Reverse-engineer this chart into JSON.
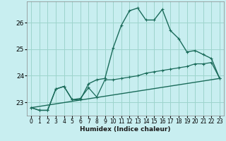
{
  "xlabel": "Humidex (Indice chaleur)",
  "bg_color": "#c8eef0",
  "grid_color": "#9dd4cc",
  "line_color": "#1a6b5a",
  "xlim": [
    -0.5,
    23.5
  ],
  "ylim": [
    22.5,
    26.8
  ],
  "yticks": [
    23,
    24,
    25,
    26
  ],
  "xticks": [
    0,
    1,
    2,
    3,
    4,
    5,
    6,
    7,
    8,
    9,
    10,
    11,
    12,
    13,
    14,
    15,
    16,
    17,
    18,
    19,
    20,
    21,
    22,
    23
  ],
  "series1_x": [
    0,
    1,
    2,
    3,
    4,
    5,
    6,
    7,
    8,
    9,
    10,
    11,
    12,
    13,
    14,
    15,
    16,
    17,
    18,
    19,
    20,
    21,
    22,
    23
  ],
  "series1_y": [
    22.8,
    22.7,
    22.7,
    23.5,
    23.6,
    23.1,
    23.1,
    23.7,
    23.85,
    23.9,
    25.05,
    25.9,
    26.45,
    26.55,
    26.1,
    26.1,
    26.5,
    25.7,
    25.4,
    24.9,
    24.95,
    24.8,
    24.65,
    23.9
  ],
  "series2_x": [
    0,
    1,
    2,
    3,
    4,
    5,
    6,
    7,
    8,
    9,
    10,
    11,
    12,
    13,
    14,
    15,
    16,
    17,
    18,
    19,
    20,
    21,
    22,
    23
  ],
  "series2_y": [
    22.8,
    22.7,
    22.7,
    23.5,
    23.6,
    23.1,
    23.15,
    23.55,
    23.2,
    23.85,
    23.85,
    23.9,
    23.95,
    24.0,
    24.1,
    24.15,
    24.2,
    24.25,
    24.3,
    24.35,
    24.45,
    24.45,
    24.5,
    23.9
  ],
  "series3_x": [
    0,
    23
  ],
  "series3_y": [
    22.8,
    23.9
  ]
}
